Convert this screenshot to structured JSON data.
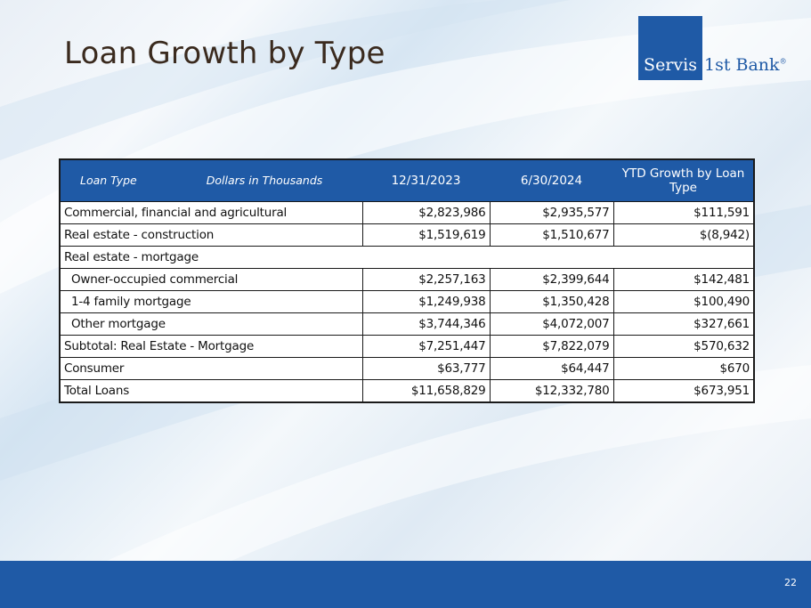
{
  "slide": {
    "title": "Loan Growth by Type",
    "page_number": "22"
  },
  "logo": {
    "box_text": "Servis",
    "rest_text": "1st Bank",
    "registered": "®",
    "color": "#1f5aa6"
  },
  "table": {
    "header": {
      "loan_type": "Loan Type",
      "units": "Dollars in Thousands",
      "col1": "12/31/2023",
      "col2": "6/30/2024",
      "col3": "YTD Growth by Loan Type"
    },
    "rows": [
      {
        "label": "Commercial, financial and agricultural",
        "v1": "$2,823,986",
        "v2": "$2,935,577",
        "v3": "$111,591"
      },
      {
        "label": "Real estate - construction",
        "v1": "$1,519,619",
        "v2": "$1,510,677",
        "v3": "$(8,942)"
      },
      {
        "label": "Real estate - mortgage"
      },
      {
        "label": "Owner-occupied commercial",
        "v1": "$2,257,163",
        "v2": "$2,399,644",
        "v3": "$142,481"
      },
      {
        "label": "1-4 family mortgage",
        "v1": "$1,249,938",
        "v2": "$1,350,428",
        "v3": "$100,490"
      },
      {
        "label": "Other mortgage",
        "v1": "$3,744,346",
        "v2": "$4,072,007",
        "v3": "$327,661"
      },
      {
        "label": "Subtotal: Real Estate - Mortgage",
        "v1": "$7,251,447",
        "v2": "$7,822,079",
        "v3": "$570,632"
      },
      {
        "label": "Consumer",
        "v1": "$63,777",
        "v2": "$64,447",
        "v3": "$670"
      },
      {
        "label": "Total Loans",
        "v1": "$11,658,829",
        "v2": "$12,332,780",
        "v3": "$673,951"
      }
    ]
  },
  "colors": {
    "accent_blue": "#1f5aa6",
    "title_brown": "#3a2a1e"
  }
}
